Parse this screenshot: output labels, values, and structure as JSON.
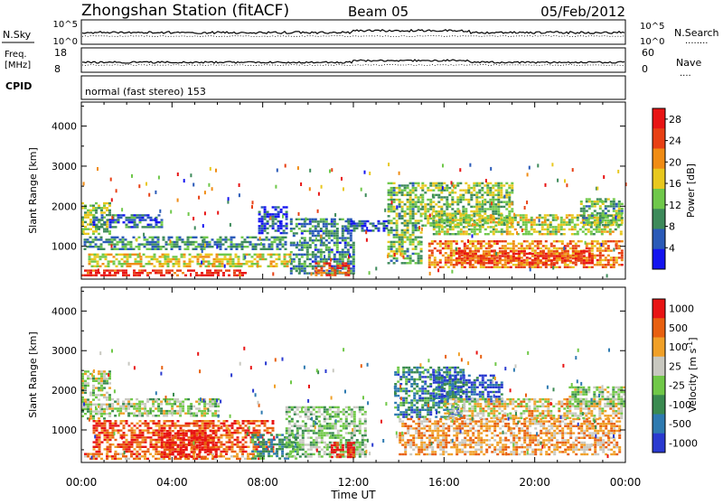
{
  "header": {
    "title": "Zhongshan Station (fitACF)",
    "beam": "Beam 05",
    "date": "05/Feb/2012"
  },
  "top_panel": {
    "left_label": "N.Sky",
    "left_ticks": [
      "10^5",
      "10^0"
    ],
    "right_ticks": [
      "10^5",
      "10^0"
    ],
    "right_label": "N.Search",
    "right_dots": "........"
  },
  "freq_panel": {
    "left_label_line1": "Freq.",
    "left_label_line2": "[MHz]",
    "left_ticks": [
      "18",
      "8"
    ],
    "right_ticks": [
      "60",
      "0"
    ],
    "right_label": "Nave",
    "right_dots": "....",
    "cpid_label": "CPID"
  },
  "cpid_text": "normal (fast stereo) 153",
  "chart_data": [
    {
      "type": "heatmap",
      "panel": "power",
      "ylabel": "Slant Range [km]",
      "yticks": [
        1000,
        2000,
        3000,
        4000
      ],
      "ylim": [
        180,
        4600
      ],
      "xlim_hours": [
        0,
        24
      ],
      "xticks": [
        "00:00",
        "04:00",
        "08:00",
        "12:00",
        "16:00",
        "20:00",
        "00:00"
      ],
      "colorbar": {
        "label": "Power [dB]",
        "ticks": [
          4,
          8,
          12,
          16,
          20,
          24,
          28
        ],
        "range": [
          0,
          30
        ],
        "colors": [
          "#1414f0",
          "#2a5ab8",
          "#3d8a5a",
          "#6fc84a",
          "#e8c81e",
          "#f08c14",
          "#e84014",
          "#e81414"
        ]
      },
      "echo_bands": [
        {
          "t0": 0.0,
          "t1": 7.2,
          "r0": 250,
          "r1": 420,
          "level": 0.88
        },
        {
          "t0": 0.3,
          "t1": 9.2,
          "r0": 480,
          "r1": 820,
          "level": 0.55
        },
        {
          "t0": 0.1,
          "t1": 9.0,
          "r0": 900,
          "r1": 1250,
          "level": 0.3
        },
        {
          "t0": 0.0,
          "t1": 1.2,
          "r0": 1300,
          "r1": 2100,
          "level": 0.45
        },
        {
          "t0": 0.5,
          "t1": 3.5,
          "r0": 1450,
          "r1": 1800,
          "level": 0.22
        },
        {
          "t0": 7.8,
          "t1": 9.0,
          "r0": 1350,
          "r1": 2000,
          "level": 0.15
        },
        {
          "t0": 9.2,
          "t1": 12.0,
          "r0": 300,
          "r1": 1700,
          "level": 0.28
        },
        {
          "t0": 10.3,
          "t1": 11.8,
          "r0": 260,
          "r1": 600,
          "level": 0.8
        },
        {
          "t0": 11.5,
          "t1": 13.5,
          "r0": 1400,
          "r1": 1650,
          "level": 0.18
        },
        {
          "t0": 13.5,
          "t1": 15.0,
          "r0": 600,
          "r1": 2600,
          "level": 0.4
        },
        {
          "t0": 15.0,
          "t1": 19.0,
          "r0": 1500,
          "r1": 2600,
          "level": 0.45
        },
        {
          "t0": 15.5,
          "t1": 23.8,
          "r0": 1300,
          "r1": 1800,
          "level": 0.5
        },
        {
          "t0": 15.3,
          "t1": 23.9,
          "r0": 450,
          "r1": 1150,
          "level": 0.72
        },
        {
          "t0": 16.5,
          "t1": 22.5,
          "r0": 550,
          "r1": 900,
          "level": 0.85
        },
        {
          "t0": 22.0,
          "t1": 23.9,
          "r0": 1500,
          "r1": 2200,
          "level": 0.4
        }
      ]
    },
    {
      "type": "heatmap",
      "panel": "velocity",
      "ylabel": "Slant Range [km]",
      "yticks": [
        1000,
        2000,
        3000,
        4000
      ],
      "ylim": [
        180,
        4600
      ],
      "xlim_hours": [
        0,
        24
      ],
      "xticks": [
        "00:00",
        "04:00",
        "08:00",
        "12:00",
        "16:00",
        "20:00",
        "00:00"
      ],
      "xlabel": "Time UT",
      "colorbar": {
        "label": "Velocity [m s^-1]",
        "ticks": [
          "1000",
          "500",
          "100",
          "25",
          "-25",
          "-100",
          "-500",
          "-1000"
        ],
        "colors": [
          "#2a3ad0",
          "#2e7ab0",
          "#3a8a50",
          "#70c848",
          "#c8c8c0",
          "#f0a028",
          "#e86010",
          "#e81414"
        ]
      },
      "echo_bands": [
        {
          "t0": 0.0,
          "t1": 1.2,
          "r0": 1300,
          "r1": 2500,
          "level": 0.5
        },
        {
          "t0": 1.2,
          "t1": 6.0,
          "r0": 1350,
          "r1": 1800,
          "level": 0.5
        },
        {
          "t0": 0.0,
          "t1": 7.8,
          "r0": 250,
          "r1": 420,
          "level": 0.75
        },
        {
          "t0": 0.5,
          "t1": 8.5,
          "r0": 450,
          "r1": 1250,
          "level": 0.85
        },
        {
          "t0": 3.5,
          "t1": 6.0,
          "r0": 300,
          "r1": 1000,
          "level": 0.95
        },
        {
          "t0": 7.5,
          "t1": 9.5,
          "r0": 300,
          "r1": 900,
          "level": 0.3
        },
        {
          "t0": 9.0,
          "t1": 12.5,
          "r0": 300,
          "r1": 1600,
          "level": 0.45
        },
        {
          "t0": 11.0,
          "t1": 12.0,
          "r0": 300,
          "r1": 700,
          "level": 0.98
        },
        {
          "t0": 13.8,
          "t1": 16.8,
          "r0": 1300,
          "r1": 2600,
          "level": 0.25
        },
        {
          "t0": 15.5,
          "t1": 18.5,
          "r0": 1700,
          "r1": 2400,
          "level": 0.15
        },
        {
          "t0": 14.0,
          "t1": 23.8,
          "r0": 400,
          "r1": 1300,
          "level": 0.7
        },
        {
          "t0": 16.0,
          "t1": 23.8,
          "r0": 1300,
          "r1": 1800,
          "level": 0.6
        },
        {
          "t0": 21.5,
          "t1": 23.9,
          "r0": 1600,
          "r1": 2100,
          "level": 0.5
        }
      ]
    }
  ]
}
